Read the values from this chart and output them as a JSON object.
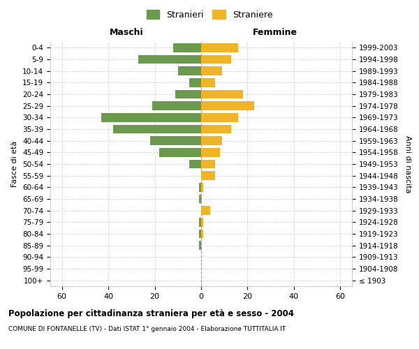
{
  "age_groups": [
    "100+",
    "95-99",
    "90-94",
    "85-89",
    "80-84",
    "75-79",
    "70-74",
    "65-69",
    "60-64",
    "55-59",
    "50-54",
    "45-49",
    "40-44",
    "35-39",
    "30-34",
    "25-29",
    "20-24",
    "15-19",
    "10-14",
    "5-9",
    "0-4"
  ],
  "birth_years": [
    "≤ 1903",
    "1904-1908",
    "1909-1913",
    "1914-1918",
    "1919-1923",
    "1924-1928",
    "1929-1933",
    "1934-1938",
    "1939-1943",
    "1944-1948",
    "1949-1953",
    "1954-1958",
    "1959-1963",
    "1964-1968",
    "1969-1973",
    "1974-1978",
    "1979-1983",
    "1984-1988",
    "1989-1993",
    "1994-1998",
    "1999-2003"
  ],
  "males": [
    0,
    0,
    0,
    1,
    1,
    1,
    0,
    1,
    1,
    0,
    5,
    18,
    22,
    38,
    43,
    21,
    11,
    5,
    10,
    27,
    12
  ],
  "females": [
    0,
    0,
    0,
    0,
    1,
    1,
    4,
    0,
    1,
    6,
    6,
    8,
    9,
    13,
    16,
    23,
    18,
    6,
    9,
    13,
    16
  ],
  "male_color": "#6b9a4f",
  "female_color": "#f0b429",
  "grid_color": "#cccccc",
  "center_line_color": "#999999",
  "xlim": 65,
  "title": "Popolazione per cittadinanza straniera per età e sesso - 2004",
  "subtitle": "COMUNE DI FONTANELLE (TV) - Dati ISTAT 1° gennaio 2004 - Elaborazione TUTTITALIA.IT",
  "ylabel_left": "Fasce di età",
  "ylabel_right": "Anni di nascita",
  "label_maschi": "Maschi",
  "label_femmine": "Femmine",
  "legend_stranieri": "Stranieri",
  "legend_straniere": "Straniere",
  "background_color": "#ffffff"
}
